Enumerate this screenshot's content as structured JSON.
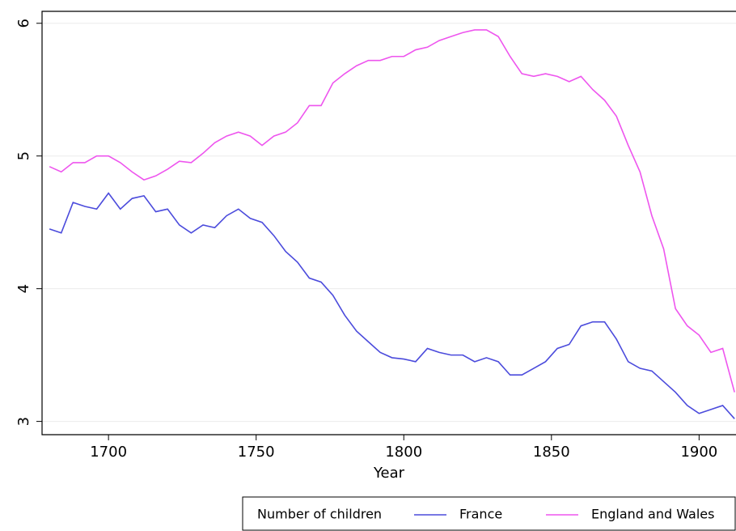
{
  "chart_data": {
    "type": "line",
    "x_label": "Year",
    "legend_title": "Number of children",
    "x": [
      1680,
      1684,
      1688,
      1692,
      1696,
      1700,
      1704,
      1708,
      1712,
      1716,
      1720,
      1724,
      1728,
      1732,
      1736,
      1740,
      1744,
      1748,
      1752,
      1756,
      1760,
      1764,
      1768,
      1772,
      1776,
      1780,
      1784,
      1788,
      1792,
      1796,
      1800,
      1804,
      1808,
      1812,
      1816,
      1820,
      1824,
      1828,
      1832,
      1836,
      1840,
      1844,
      1848,
      1852,
      1856,
      1860,
      1864,
      1868,
      1872,
      1876,
      1880,
      1884,
      1888,
      1892,
      1896,
      1900,
      1904,
      1908,
      1912
    ],
    "series": [
      {
        "name": "France",
        "color": "#4b4bdc",
        "values": [
          4.45,
          4.42,
          4.65,
          4.62,
          4.6,
          4.72,
          4.6,
          4.68,
          4.7,
          4.58,
          4.6,
          4.48,
          4.42,
          4.48,
          4.46,
          4.55,
          4.6,
          4.53,
          4.5,
          4.4,
          4.28,
          4.2,
          4.08,
          4.05,
          3.95,
          3.8,
          3.68,
          3.6,
          3.52,
          3.48,
          3.47,
          3.45,
          3.55,
          3.52,
          3.5,
          3.5,
          3.45,
          3.48,
          3.45,
          3.35,
          3.35,
          3.4,
          3.45,
          3.55,
          3.58,
          3.72,
          3.75,
          3.75,
          3.62,
          3.45,
          3.4,
          3.38,
          3.3,
          3.22,
          3.12,
          3.06,
          3.09,
          3.12,
          3.02
        ]
      },
      {
        "name": "England and Wales",
        "color": "#ee55ee",
        "values": [
          4.92,
          4.88,
          4.95,
          4.95,
          5.0,
          5.0,
          4.95,
          4.88,
          4.82,
          4.85,
          4.9,
          4.96,
          4.95,
          5.02,
          5.1,
          5.15,
          5.18,
          5.15,
          5.08,
          5.15,
          5.18,
          5.25,
          5.38,
          5.38,
          5.55,
          5.62,
          5.68,
          5.72,
          5.72,
          5.75,
          5.75,
          5.8,
          5.82,
          5.87,
          5.9,
          5.93,
          5.95,
          5.95,
          5.9,
          5.75,
          5.62,
          5.6,
          5.62,
          5.6,
          5.56,
          5.6,
          5.5,
          5.42,
          5.3,
          5.08,
          4.88,
          4.55,
          4.3,
          3.85,
          3.72,
          3.65,
          3.52,
          3.55,
          3.22
        ]
      }
    ],
    "xlim": [
      1677.5,
      1912.5
    ],
    "xticks": [
      1700,
      1750,
      1800,
      1850,
      1900
    ],
    "ylim": [
      2.9,
      6.09
    ],
    "yticks": [
      3,
      4,
      5,
      6
    ],
    "grid": true
  }
}
